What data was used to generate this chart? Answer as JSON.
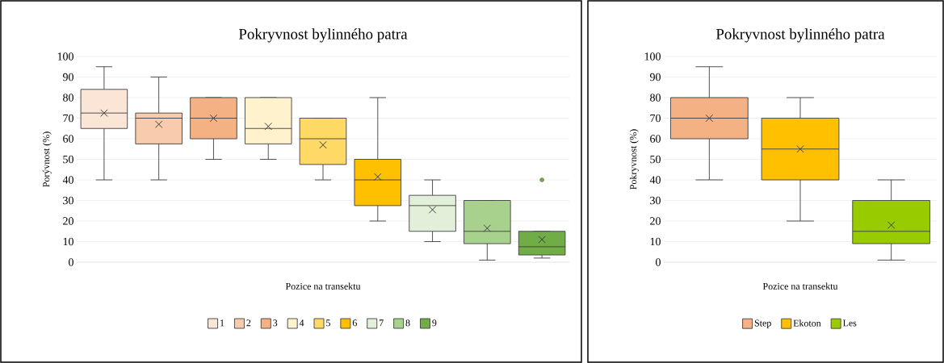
{
  "chart_data": [
    {
      "type": "box",
      "title": "Pokryvnost bylinného patra",
      "xlabel": "Pozice na transektu",
      "ylabel": "Porývnost (%)",
      "categories": [
        null
      ],
      "ylim": [
        0,
        100
      ],
      "yticks": [
        0,
        10,
        20,
        30,
        40,
        50,
        60,
        70,
        80,
        90,
        100
      ],
      "grid": "y",
      "legend": "bottom",
      "tick_labels": "y",
      "marker": "cross",
      "series": [
        {
          "name": "1",
          "color": "#fbe5d6",
          "boxes": [
            {
              "low": 40,
              "q1": 65,
              "median": 72.5,
              "q3": 84,
              "high": 95,
              "mean": 72.5
            }
          ]
        },
        {
          "name": "2",
          "color": "#f8cbad",
          "boxes": [
            {
              "low": 40,
              "q1": 57.5,
              "median": 70,
              "q3": 72.5,
              "high": 90,
              "mean": 67
            }
          ]
        },
        {
          "name": "3",
          "color": "#f4b183",
          "boxes": [
            {
              "low": 50,
              "q1": 60,
              "median": 70,
              "q3": 80,
              "high": 80,
              "mean": 70
            }
          ]
        },
        {
          "name": "4",
          "color": "#fff2cc",
          "boxes": [
            {
              "low": 50,
              "q1": 57.5,
              "median": 65,
              "q3": 80,
              "high": 80,
              "mean": 66
            }
          ]
        },
        {
          "name": "5",
          "color": "#ffd966",
          "boxes": [
            {
              "low": 40,
              "q1": 47.5,
              "median": 60,
              "q3": 70,
              "high": 70,
              "mean": 57
            }
          ]
        },
        {
          "name": "6",
          "color": "#ffc000",
          "boxes": [
            {
              "low": 20,
              "q1": 27.5,
              "median": 40,
              "q3": 50,
              "high": 80,
              "mean": 41.5
            }
          ]
        },
        {
          "name": "7",
          "color": "#e2f0d9",
          "boxes": [
            {
              "low": 10,
              "q1": 15,
              "median": 27.5,
              "q3": 32.5,
              "high": 40,
              "mean": 25.5
            }
          ]
        },
        {
          "name": "8",
          "color": "#a9d18e",
          "boxes": [
            {
              "low": 1,
              "q1": 9,
              "median": 15,
              "q3": 30,
              "high": 30,
              "mean": 16.5
            }
          ]
        },
        {
          "name": "9",
          "color": "#70ad47",
          "boxes": [
            {
              "low": 2,
              "q1": 3.5,
              "median": 7.5,
              "q3": 15,
              "high": 15,
              "mean": 11,
              "outliers": [
                40
              ]
            }
          ]
        }
      ]
    },
    {
      "type": "box",
      "title": "Pokryvnost bylinného patra",
      "xlabel": "Pozice na transektu",
      "ylabel": "Pokryvnost (%)",
      "categories": [
        null
      ],
      "ylim": [
        0,
        100
      ],
      "yticks": [
        0,
        10,
        20,
        30,
        40,
        50,
        60,
        70,
        80,
        90,
        100
      ],
      "grid": "y",
      "legend": "bottom",
      "tick_labels": "y",
      "marker": "cross",
      "series": [
        {
          "name": "Step",
          "color": "#f4b183",
          "boxes": [
            {
              "low": 40,
              "q1": 60,
              "median": 70,
              "q3": 80,
              "high": 95,
              "mean": 70
            }
          ]
        },
        {
          "name": "Ekoton",
          "color": "#ffc000",
          "boxes": [
            {
              "low": 20,
              "q1": 40,
              "median": 55,
              "q3": 70,
              "high": 80,
              "mean": 55
            }
          ]
        },
        {
          "name": "Les",
          "color": "#99cc00",
          "boxes": [
            {
              "low": 1,
              "q1": 9,
              "median": 15,
              "q3": 30,
              "high": 40,
              "mean": 18
            }
          ]
        }
      ]
    }
  ]
}
